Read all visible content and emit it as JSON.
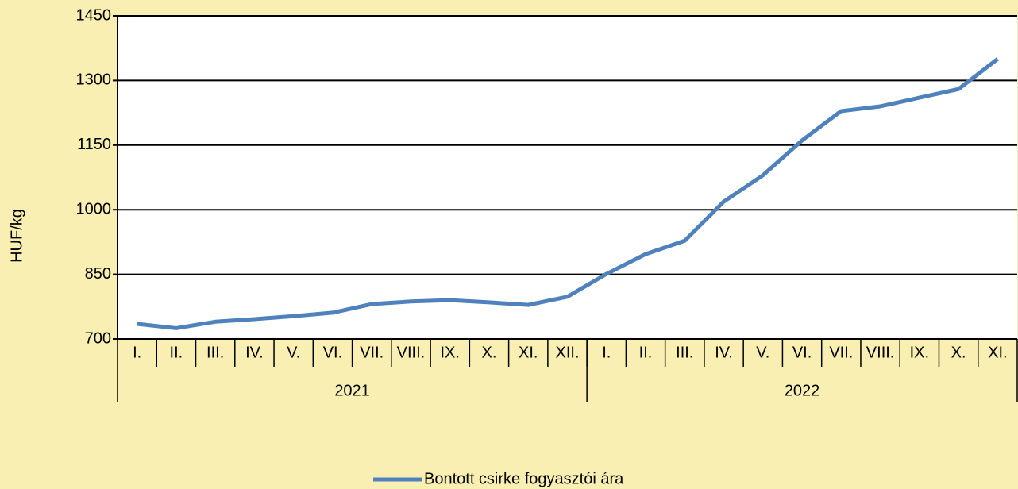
{
  "chart_data": {
    "type": "line",
    "y_label": "HUF/kg",
    "categories": [
      "I.",
      "II.",
      "III.",
      "IV.",
      "V.",
      "VI.",
      "VII.",
      "VIII.",
      "IX.",
      "X.",
      "XI.",
      "XII.",
      "I.",
      "II.",
      "III.",
      "IV.",
      "V.",
      "VI.",
      "VII.",
      "VIII.",
      "IX.",
      "X.",
      "XI."
    ],
    "groups": [
      {
        "name": "2021",
        "count": 12
      },
      {
        "name": "2022",
        "count": 11
      }
    ],
    "series": [
      {
        "name": "Bontott csirke fogyasztói ára",
        "color": "#4f81bd",
        "values": [
          735,
          725,
          740,
          746,
          753,
          761,
          781,
          787,
          790,
          785,
          779,
          798,
          851,
          897,
          928,
          1019,
          1080,
          1161,
          1229,
          1240,
          1260,
          1280,
          1350
        ]
      }
    ],
    "ylim": [
      700,
      1450
    ],
    "yticks": [
      700,
      850,
      1000,
      1150,
      1300,
      1450
    ],
    "grid": true,
    "legend": "bottom"
  }
}
